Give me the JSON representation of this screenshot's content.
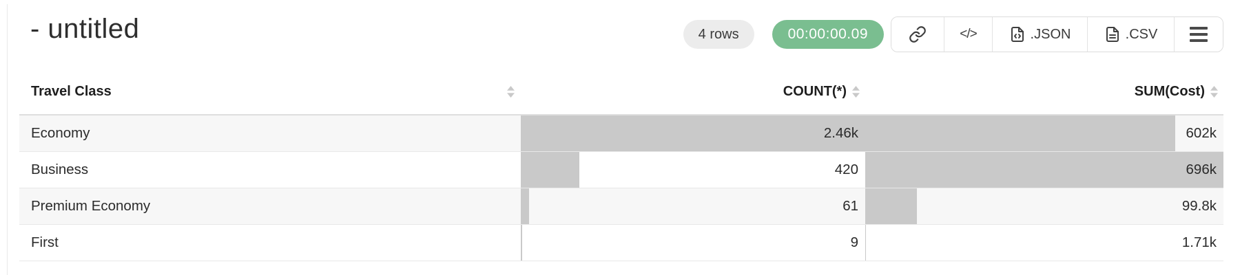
{
  "header": {
    "title": "- untitled",
    "row_count_badge": "4 rows",
    "timer_badge": "00:00:00.09",
    "code_button_glyph": "</>",
    "export_json_label": ".JSON",
    "export_csv_label": ".CSV"
  },
  "table": {
    "columns": [
      {
        "label": "Travel Class",
        "align": "left",
        "sortable": true
      },
      {
        "label": "COUNT(*)",
        "align": "right",
        "sortable": true
      },
      {
        "label": "SUM(Cost)",
        "align": "right",
        "sortable": true
      }
    ],
    "rows": [
      {
        "travel_class": "Economy",
        "count_display": "2.46k",
        "count_value": 2460,
        "sum_display": "602k",
        "sum_value": 602000
      },
      {
        "travel_class": "Business",
        "count_display": "420",
        "count_value": 420,
        "sum_display": "696k",
        "sum_value": 696000
      },
      {
        "travel_class": "Premium Economy",
        "count_display": "61",
        "count_value": 61,
        "sum_display": "99.8k",
        "sum_value": 99800
      },
      {
        "travel_class": "First",
        "count_display": "9",
        "count_value": 9,
        "sum_display": "1.71k",
        "sum_value": 1710
      }
    ]
  },
  "icons": {
    "link": "link-icon",
    "code": "code-icon",
    "json_file": "json-file-icon",
    "csv_file": "csv-file-icon",
    "menu": "hamburger-menu-icon",
    "sort": "sort-arrows-icon"
  },
  "colors": {
    "green": "#7abe90",
    "pill": "#ececec",
    "bar": "#c9c9c9",
    "stripe": "#f7f7f7",
    "divider": "#e8e8e8"
  }
}
